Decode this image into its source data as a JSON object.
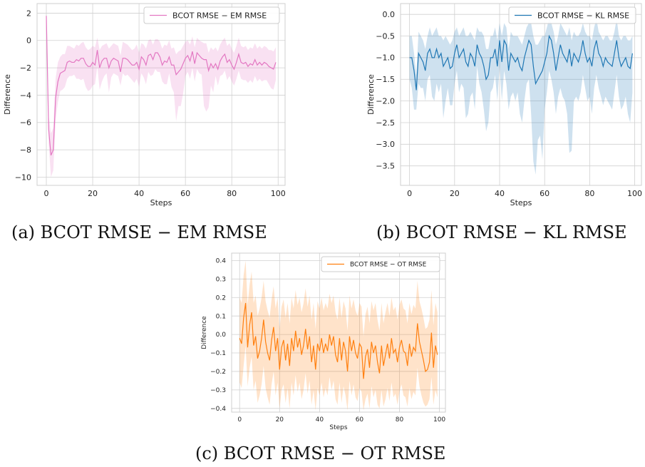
{
  "captions": {
    "a": "(a) BCOT RMSE − EM RMSE",
    "b": "(b) BCOT RMSE − KL RMSE",
    "c": "(c) BCOT RMSE − OT RMSE"
  },
  "colors": {
    "pink": "#e377c2",
    "blue": "#1f77b4",
    "orange": "#ff7f0e",
    "grid": "#d0d0d0"
  },
  "chart_data": [
    {
      "id": "a",
      "type": "line",
      "xlabel": "Steps",
      "ylabel": "Difference",
      "legend": "BCOT RMSE − EM RMSE",
      "legend_position": "top-right",
      "grid": true,
      "xlim": [
        -4,
        103
      ],
      "ylim": [
        -10.6,
        2.7
      ],
      "xticks": [
        0,
        20,
        40,
        60,
        80,
        100
      ],
      "yticks": [
        -10,
        -8,
        -6,
        -4,
        -2,
        0,
        2
      ],
      "x_start": 0,
      "mean": [
        1.8,
        -6.5,
        -8.4,
        -8.0,
        -4.2,
        -3.0,
        -2.4,
        -2.3,
        -2.2,
        -1.6,
        -1.5,
        -1.6,
        -1.6,
        -1.4,
        -1.5,
        -1.3,
        -1.3,
        -1.7,
        -1.9,
        -1.9,
        -1.6,
        -1.8,
        -0.7,
        -2.0,
        -1.5,
        -1.3,
        -1.3,
        -2.0,
        -1.5,
        -1.3,
        -1.4,
        -1.5,
        -2.3,
        -1.3,
        -1.3,
        -1.4,
        -1.6,
        -1.8,
        -1.8,
        -1.6,
        -2.1,
        -1.2,
        -1.4,
        -1.8,
        -1.1,
        -1.0,
        -1.4,
        -0.9,
        -0.9,
        -1.2,
        -1.8,
        -1.5,
        -1.6,
        -1.2,
        -1.8,
        -1.8,
        -2.5,
        -2.3,
        -2.1,
        -1.7,
        -1.3,
        -1.1,
        -1.5,
        -0.8,
        -1.7,
        -0.9,
        -1.1,
        -1.3,
        -1.4,
        -1.4,
        -2.2,
        -1.7,
        -2.0,
        -1.7,
        -2.1,
        -1.5,
        -1.2,
        -1.0,
        -1.6,
        -1.4,
        -1.8,
        -2.1,
        -1.6,
        -1.0,
        -1.6,
        -1.7,
        -1.6,
        -1.9,
        -1.7,
        -1.8,
        -1.4,
        -1.8,
        -1.6,
        -1.8,
        -1.6,
        -1.7,
        -1.9,
        -2.0,
        -2.1,
        -1.6
      ],
      "band_lower": [
        1.8,
        -7.5,
        -10.0,
        -9.5,
        -5.8,
        -4.5,
        -3.7,
        -3.6,
        -3.4,
        -2.8,
        -2.6,
        -2.6,
        -2.5,
        -2.8,
        -2.8,
        -2.9,
        -2.8,
        -3.4,
        -3.7,
        -3.6,
        -3.3,
        -3.2,
        -1.9,
        -3.6,
        -3.0,
        -2.6,
        -2.4,
        -3.8,
        -2.7,
        -2.4,
        -2.5,
        -2.6,
        -3.3,
        -2.4,
        -2.6,
        -2.5,
        -2.7,
        -2.9,
        -3.1,
        -2.8,
        -3.4,
        -2.4,
        -2.7,
        -3.2,
        -2.3,
        -2.6,
        -2.5,
        -2.1,
        -2.3,
        -2.3,
        -3.0,
        -3.2,
        -3.2,
        -2.4,
        -3.4,
        -3.8,
        -5.9,
        -4.8,
        -4.8,
        -3.9,
        -2.6,
        -2.3,
        -2.8,
        -2.0,
        -3.0,
        -2.1,
        -2.4,
        -2.5,
        -4.8,
        -5.2,
        -4.9,
        -3.3,
        -3.8,
        -2.6,
        -3.3,
        -2.6,
        -2.5,
        -2.2,
        -2.9,
        -2.6,
        -3.0,
        -3.3,
        -2.8,
        -2.2,
        -2.8,
        -2.9,
        -2.9,
        -3.1,
        -2.9,
        -3.1,
        -2.6,
        -3.0,
        -2.8,
        -3.0,
        -2.9,
        -2.9,
        -3.2,
        -3.5,
        -3.6,
        -2.9
      ],
      "band_upper": [
        1.8,
        -5.5,
        -6.8,
        -6.4,
        -2.8,
        -1.6,
        -1.2,
        -1.0,
        -1.0,
        -0.4,
        -0.4,
        -0.5,
        -0.6,
        -0.3,
        -0.4,
        -0.2,
        -0.1,
        -0.5,
        -0.7,
        -0.6,
        -0.4,
        -0.5,
        0.2,
        -0.7,
        -0.4,
        -0.3,
        -0.2,
        -0.6,
        -0.4,
        -0.2,
        -0.3,
        -0.4,
        -1.1,
        -0.1,
        -0.2,
        -0.3,
        -0.5,
        -0.7,
        -0.6,
        -0.3,
        -0.9,
        -0.2,
        -0.3,
        -0.6,
        0.0,
        0.1,
        -0.3,
        0.1,
        0.1,
        -0.1,
        -0.6,
        -0.3,
        -0.4,
        0.0,
        -0.6,
        -0.5,
        -1.0,
        -0.8,
        -0.7,
        -0.4,
        -0.1,
        0.0,
        -0.3,
        0.3,
        -0.5,
        0.2,
        0.0,
        -0.1,
        -0.2,
        -0.2,
        -0.9,
        -0.5,
        -0.7,
        -0.5,
        -0.8,
        -0.3,
        0.0,
        0.2,
        -0.4,
        -0.2,
        -0.6,
        -0.9,
        -0.4,
        0.2,
        -0.4,
        -0.5,
        -0.4,
        -0.7,
        -0.5,
        -0.6,
        -0.2,
        -0.6,
        -0.4,
        -0.6,
        -0.4,
        -0.5,
        -0.7,
        -0.7,
        -0.8,
        -0.5
      ]
    },
    {
      "id": "b",
      "type": "line",
      "xlabel": "Steps",
      "ylabel": "Difference",
      "legend": "BCOT RMSE − KL RMSE",
      "legend_position": "top-right",
      "grid": true,
      "xlim": [
        -4,
        103
      ],
      "ylim": [
        -3.95,
        0.25
      ],
      "xticks": [
        0,
        20,
        40,
        60,
        80,
        100
      ],
      "yticks": [
        -3.5,
        -3.0,
        -2.5,
        -2.0,
        -1.5,
        -1.0,
        -0.5,
        0.0
      ],
      "x_start": 0,
      "mean": [
        -1.0,
        -1.0,
        -1.3,
        -1.75,
        -0.9,
        -1.0,
        -1.1,
        -1.3,
        -0.9,
        -0.8,
        -1.0,
        -1.0,
        -0.8,
        -1.0,
        -0.9,
        -1.2,
        -1.1,
        -1.0,
        -1.25,
        -1.2,
        -0.9,
        -0.7,
        -1.0,
        -0.9,
        -0.8,
        -1.1,
        -1.2,
        -0.9,
        -1.0,
        -1.2,
        -0.7,
        -0.9,
        -1.0,
        -1.2,
        -1.5,
        -1.4,
        -1.0,
        -1.0,
        -0.8,
        -1.2,
        -0.6,
        -1.1,
        -0.6,
        -0.7,
        -1.3,
        -0.9,
        -1.0,
        -1.1,
        -1.0,
        -1.2,
        -1.3,
        -1.0,
        -0.8,
        -0.6,
        -0.7,
        -1.2,
        -1.6,
        -1.5,
        -1.4,
        -1.3,
        -1.1,
        -0.9,
        -0.5,
        -0.6,
        -0.9,
        -1.3,
        -1.0,
        -0.7,
        -0.9,
        -1.0,
        -1.1,
        -0.8,
        -1.2,
        -0.9,
        -1.0,
        -1.1,
        -0.9,
        -0.6,
        -0.9,
        -1.1,
        -1.0,
        -1.2,
        -0.8,
        -0.6,
        -0.9,
        -1.0,
        -1.2,
        -1.0,
        -1.1,
        -1.15,
        -1.2,
        -0.9,
        -0.6,
        -1.0,
        -1.2,
        -1.1,
        -1.0,
        -1.2,
        -1.25,
        -0.9
      ],
      "band_lower": [
        -1.5,
        -1.7,
        -2.2,
        -2.2,
        -1.6,
        -1.7,
        -1.7,
        -2.0,
        -1.5,
        -1.4,
        -1.9,
        -2.0,
        -1.6,
        -1.8,
        -1.6,
        -2.4,
        -2.0,
        -1.7,
        -2.1,
        -2.1,
        -1.6,
        -1.3,
        -1.8,
        -1.6,
        -1.7,
        -2.4,
        -2.3,
        -1.9,
        -1.8,
        -2.2,
        -1.2,
        -1.6,
        -1.8,
        -2.2,
        -2.7,
        -2.5,
        -1.8,
        -1.7,
        -1.4,
        -2.0,
        -1.2,
        -2.0,
        -1.3,
        -1.6,
        -2.2,
        -1.9,
        -1.8,
        -2.0,
        -1.8,
        -2.3,
        -2.5,
        -2.0,
        -1.6,
        -1.5,
        -2.3,
        -3.4,
        -3.7,
        -2.9,
        -2.8,
        -3.35,
        -2.2,
        -1.8,
        -1.3,
        -1.5,
        -1.8,
        -2.3,
        -1.9,
        -1.7,
        -1.9,
        -2.0,
        -2.3,
        -3.2,
        -3.15,
        -2.0,
        -1.9,
        -2.0,
        -1.8,
        -1.4,
        -1.7,
        -2.0,
        -1.9,
        -2.3,
        -1.7,
        -1.4,
        -1.7,
        -1.9,
        -2.1,
        -1.9,
        -2.0,
        -2.1,
        -2.2,
        -1.8,
        -1.4,
        -1.9,
        -2.2,
        -2.1,
        -1.9,
        -2.3,
        -2.5,
        -1.8
      ],
      "band_upper": [
        -0.5,
        -0.5,
        -0.9,
        -1.4,
        -0.4,
        -0.5,
        -0.6,
        -0.8,
        -0.5,
        -0.3,
        -0.5,
        -0.4,
        -0.3,
        -0.5,
        -0.5,
        -0.6,
        -0.5,
        -0.6,
        -0.7,
        -0.6,
        -0.4,
        -0.3,
        -0.5,
        -0.4,
        -0.3,
        -0.5,
        -0.5,
        -0.4,
        -0.5,
        -0.6,
        -0.3,
        -0.4,
        -0.4,
        -0.5,
        -0.8,
        -0.8,
        -0.5,
        -0.5,
        -0.3,
        -0.6,
        -0.2,
        -0.5,
        -0.2,
        -0.3,
        -0.8,
        -0.4,
        -0.5,
        -0.5,
        -0.5,
        -0.6,
        -0.7,
        -0.5,
        -0.3,
        -0.2,
        -0.2,
        -0.5,
        -0.7,
        -0.7,
        -0.6,
        -0.5,
        -0.5,
        -0.3,
        -0.1,
        -0.2,
        -0.4,
        -0.7,
        -0.5,
        -0.2,
        -0.3,
        -0.4,
        -0.5,
        -0.3,
        -0.6,
        -0.4,
        -0.5,
        -0.5,
        -0.4,
        -0.2,
        -0.4,
        -0.5,
        -0.5,
        -0.6,
        -0.3,
        -0.1,
        -0.4,
        -0.5,
        -0.6,
        -0.5,
        -0.5,
        -0.6,
        -0.6,
        -0.4,
        -0.1,
        -0.5,
        -0.6,
        -0.5,
        -0.5,
        -0.6,
        -0.6,
        -0.5
      ]
    },
    {
      "id": "c",
      "type": "line",
      "xlabel": "Steps",
      "ylabel": "Difference",
      "legend": "BCOT RMSE − OT RMSE",
      "legend_position": "top-right",
      "grid": true,
      "xlim": [
        -4,
        103
      ],
      "ylim": [
        -0.42,
        0.44
      ],
      "xticks": [
        0,
        20,
        40,
        60,
        80,
        100
      ],
      "yticks": [
        -0.4,
        -0.3,
        -0.2,
        -0.1,
        0.0,
        0.1,
        0.2,
        0.3,
        0.4
      ],
      "x_start": 0,
      "mean": [
        -0.02,
        -0.05,
        0.09,
        0.17,
        -0.07,
        0.05,
        0.12,
        -0.06,
        -0.01,
        -0.13,
        -0.09,
        -0.02,
        0.08,
        -0.04,
        -0.1,
        -0.14,
        -0.03,
        0.04,
        -0.09,
        -0.02,
        -0.19,
        -0.07,
        -0.03,
        -0.14,
        -0.05,
        -0.17,
        -0.02,
        -0.09,
        0.02,
        -0.07,
        -0.02,
        -0.11,
        -0.06,
        0.03,
        -0.08,
        -0.01,
        -0.15,
        -0.06,
        -0.19,
        -0.05,
        -0.09,
        -0.02,
        -0.1,
        -0.05,
        -0.09,
        0.0,
        -0.06,
        -0.01,
        -0.11,
        -0.15,
        -0.02,
        -0.14,
        -0.04,
        -0.09,
        -0.2,
        -0.01,
        -0.09,
        -0.03,
        -0.1,
        -0.13,
        -0.05,
        -0.07,
        -0.24,
        -0.12,
        -0.08,
        -0.18,
        -0.04,
        -0.1,
        -0.06,
        -0.15,
        -0.21,
        -0.06,
        -0.17,
        -0.11,
        -0.05,
        -0.13,
        -0.02,
        -0.1,
        -0.08,
        -0.15,
        -0.07,
        -0.03,
        -0.09,
        -0.1,
        -0.17,
        -0.05,
        -0.12,
        -0.07,
        -0.09,
        0.06,
        -0.04,
        -0.09,
        -0.14,
        -0.2,
        -0.19,
        -0.15,
        0.01,
        -0.18,
        -0.06,
        -0.11
      ],
      "band_lower": [
        -0.26,
        -0.29,
        -0.17,
        -0.06,
        -0.28,
        -0.18,
        -0.12,
        -0.3,
        -0.25,
        -0.37,
        -0.33,
        -0.27,
        -0.17,
        -0.29,
        -0.34,
        -0.38,
        -0.27,
        -0.2,
        -0.33,
        -0.26,
        -0.4,
        -0.3,
        -0.27,
        -0.37,
        -0.29,
        -0.4,
        -0.26,
        -0.33,
        -0.22,
        -0.31,
        -0.26,
        -0.35,
        -0.3,
        -0.21,
        -0.32,
        -0.25,
        -0.38,
        -0.3,
        -0.41,
        -0.29,
        -0.33,
        -0.26,
        -0.34,
        -0.29,
        -0.33,
        -0.23,
        -0.3,
        -0.25,
        -0.35,
        -0.38,
        -0.26,
        -0.37,
        -0.28,
        -0.33,
        -0.41,
        -0.25,
        -0.33,
        -0.27,
        -0.34,
        -0.36,
        -0.29,
        -0.31,
        -0.41,
        -0.35,
        -0.32,
        -0.4,
        -0.28,
        -0.34,
        -0.3,
        -0.38,
        -0.4,
        -0.3,
        -0.39,
        -0.35,
        -0.29,
        -0.36,
        -0.26,
        -0.34,
        -0.32,
        -0.38,
        -0.31,
        -0.27,
        -0.33,
        -0.34,
        -0.39,
        -0.29,
        -0.35,
        -0.31,
        -0.33,
        -0.18,
        -0.28,
        -0.33,
        -0.37,
        -0.39,
        -0.38,
        -0.35,
        -0.23,
        -0.38,
        -0.3,
        -0.34
      ],
      "band_upper": [
        0.2,
        0.17,
        0.32,
        0.4,
        0.16,
        0.27,
        0.34,
        0.17,
        0.21,
        0.1,
        0.14,
        0.2,
        0.29,
        0.18,
        0.13,
        0.09,
        0.19,
        0.26,
        0.14,
        0.2,
        0.03,
        0.15,
        0.19,
        0.09,
        0.17,
        0.06,
        0.2,
        0.14,
        0.24,
        0.16,
        0.2,
        0.12,
        0.17,
        0.25,
        0.15,
        0.21,
        0.08,
        0.17,
        0.03,
        0.18,
        0.14,
        0.2,
        0.13,
        0.17,
        0.14,
        0.22,
        0.17,
        0.21,
        0.12,
        0.08,
        0.2,
        0.09,
        0.18,
        0.14,
        0.02,
        0.21,
        0.14,
        0.19,
        0.13,
        0.1,
        0.17,
        0.15,
        -0.01,
        0.11,
        0.15,
        0.06,
        0.18,
        0.13,
        0.17,
        0.08,
        0.02,
        0.17,
        0.06,
        0.12,
        0.17,
        0.1,
        0.2,
        0.13,
        0.15,
        0.08,
        0.16,
        0.19,
        0.14,
        0.13,
        0.06,
        0.17,
        0.11,
        0.16,
        0.14,
        0.29,
        0.18,
        0.14,
        0.09,
        0.03,
        0.04,
        0.08,
        0.24,
        0.05,
        0.17,
        0.12
      ]
    }
  ]
}
